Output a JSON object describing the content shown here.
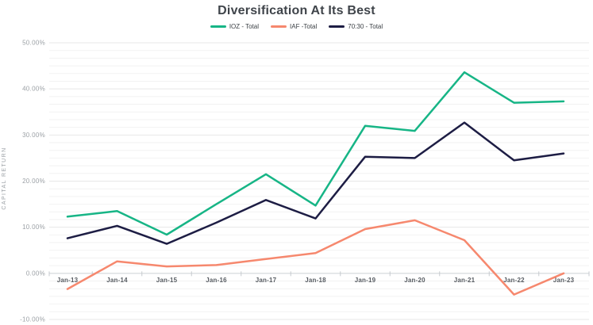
{
  "chart_data": {
    "type": "line",
    "title": "Diversification At Its Best",
    "ylabel": "CAPITAL RETURN",
    "xlabel": "",
    "categories": [
      "Jan-13",
      "Jan-14",
      "Jan-15",
      "Jan-16",
      "Jan-17",
      "Jan-18",
      "Jan-19",
      "Jan-20",
      "Jan-21",
      "Jan-22",
      "Jan-23"
    ],
    "series": [
      {
        "name": "IOZ - Total",
        "color": "#17b586",
        "values": [
          12.3,
          13.5,
          8.4,
          15.0,
          21.5,
          14.7,
          32.0,
          30.9,
          43.6,
          37.0,
          37.3
        ]
      },
      {
        "name": "IAF -Total",
        "color": "#f6886e",
        "values": [
          -3.4,
          2.6,
          1.5,
          1.8,
          3.1,
          4.4,
          9.6,
          11.5,
          7.2,
          -4.6,
          0.0
        ]
      },
      {
        "name": "70:30 - Total",
        "color": "#1d1d44",
        "values": [
          7.6,
          10.3,
          6.4,
          11.0,
          15.9,
          11.9,
          25.3,
          25.0,
          32.7,
          24.5,
          26.0
        ]
      }
    ],
    "ylim": [
      -10,
      50
    ],
    "y_ticks": [
      {
        "label": "50.00%",
        "value": 50
      },
      {
        "label": "40.00%",
        "value": 40
      },
      {
        "label": "30.00%",
        "value": 30
      },
      {
        "label": "20.00%",
        "value": 20
      },
      {
        "label": "10.00%",
        "value": 10
      },
      {
        "label": "0.00%",
        "value": 0
      },
      {
        "label": "-10.00%",
        "value": -10
      }
    ],
    "y_minor_divisions": 6,
    "grid": true,
    "legend_position": "top"
  },
  "colors": {
    "title_text": "#3f444a",
    "legend_text": "#3a3f44",
    "y_tick_text": "#9ba0a5",
    "x_tick_text": "#575c62",
    "major_grid": "#e7e7e7",
    "minor_grid": "#f2f2f2",
    "zero_line": "#ccd0d4",
    "axis_tick": "#c6cacf",
    "background": "#ffffff"
  }
}
